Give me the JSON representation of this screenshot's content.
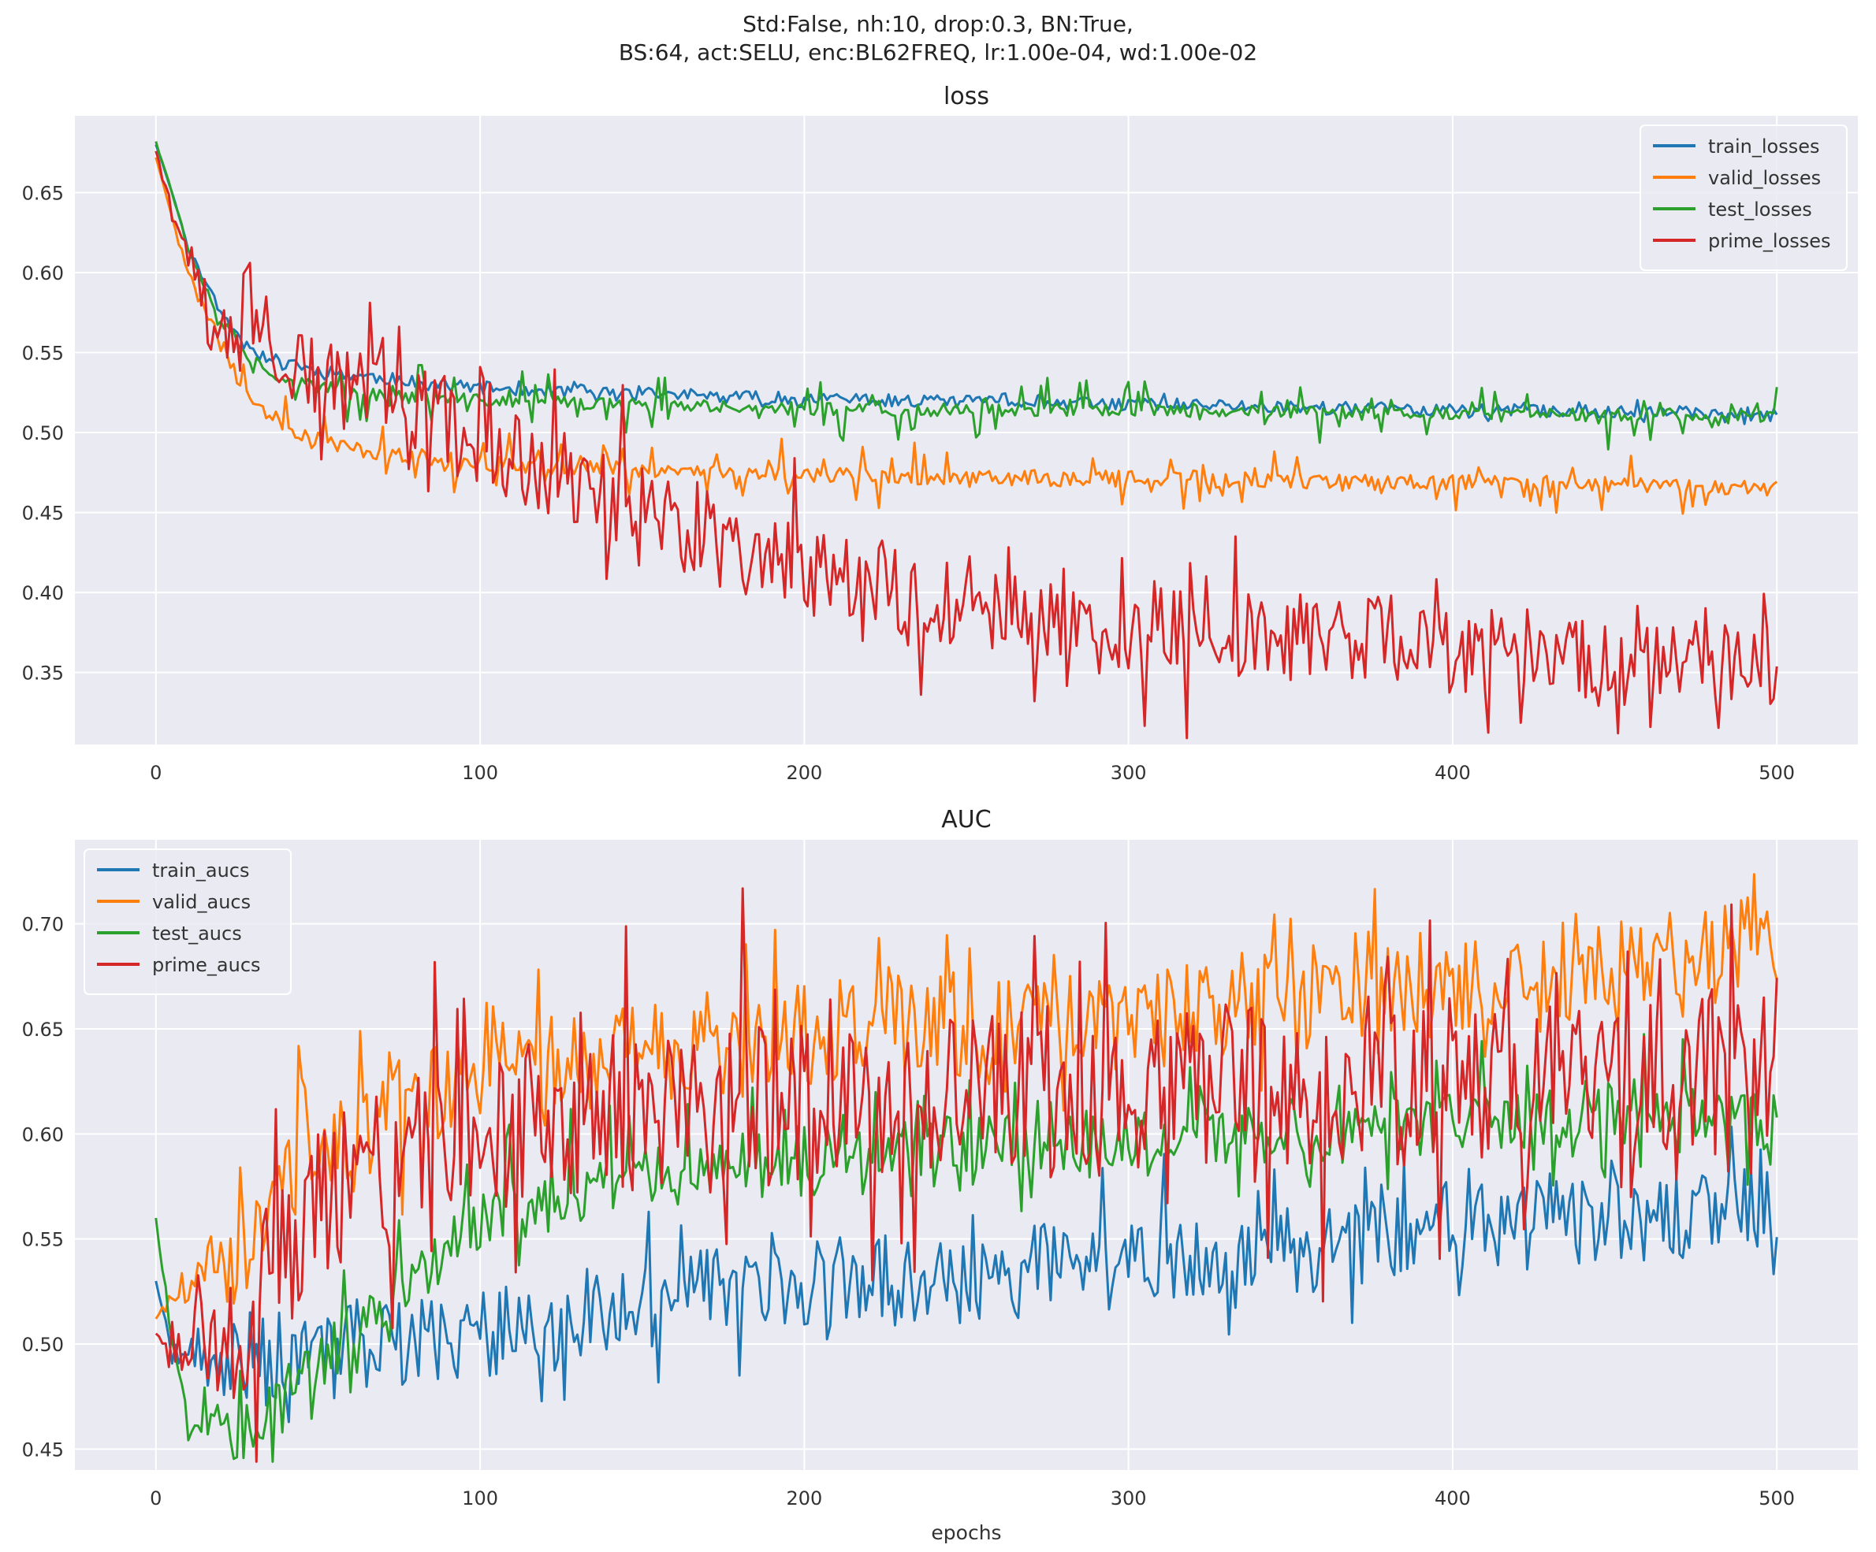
{
  "figure": {
    "title_line1": "Std:False, nh:10, drop:0.3, BN:True,",
    "title_line2": "BS:64, act:SELU, enc:BL62FREQ, lr:1.00e-04, wd:1.00e-02"
  },
  "colors": {
    "background": "#eaeaf2",
    "grid": "#ffffff",
    "blue": "#1f77b4",
    "orange": "#ff7f0e",
    "green": "#2ca02c",
    "red": "#d62728"
  },
  "chart_data": [
    {
      "type": "line",
      "title": "loss",
      "xlabel": "",
      "ylabel": "",
      "xlim": [
        -25,
        525
      ],
      "ylim": [
        0.305,
        0.698
      ],
      "xticks": [
        0,
        100,
        200,
        300,
        400,
        500
      ],
      "yticks": [
        0.35,
        0.4,
        0.45,
        0.5,
        0.55,
        0.6,
        0.65
      ],
      "grid": true,
      "legend_position": "top-right",
      "epochs": 500,
      "series": [
        {
          "name": "train_losses",
          "color": "#1f77b4",
          "anchors": [
            [
              0,
              0.68
            ],
            [
              5,
              0.65
            ],
            [
              10,
              0.615
            ],
            [
              20,
              0.575
            ],
            [
              30,
              0.552
            ],
            [
              40,
              0.542
            ],
            [
              60,
              0.536
            ],
            [
              80,
              0.532
            ],
            [
              100,
              0.528
            ],
            [
              150,
              0.524
            ],
            [
              200,
              0.521
            ],
            [
              250,
              0.519
            ],
            [
              300,
              0.518
            ],
            [
              350,
              0.516
            ],
            [
              400,
              0.514
            ],
            [
              450,
              0.513
            ],
            [
              500,
              0.512
            ]
          ],
          "noise": 0.004,
          "spikes": 0.004,
          "seed": 11
        },
        {
          "name": "valid_losses",
          "color": "#ff7f0e",
          "anchors": [
            [
              0,
              0.672
            ],
            [
              5,
              0.635
            ],
            [
              10,
              0.6
            ],
            [
              20,
              0.555
            ],
            [
              30,
              0.52
            ],
            [
              40,
              0.503
            ],
            [
              60,
              0.49
            ],
            [
              80,
              0.485
            ],
            [
              100,
              0.481
            ],
            [
              150,
              0.477
            ],
            [
              200,
              0.474
            ],
            [
              250,
              0.472
            ],
            [
              300,
              0.471
            ],
            [
              350,
              0.47
            ],
            [
              400,
              0.469
            ],
            [
              450,
              0.468
            ],
            [
              500,
              0.465
            ]
          ],
          "noise": 0.005,
          "spikes": 0.018,
          "seed": 23
        },
        {
          "name": "test_losses",
          "color": "#2ca02c",
          "anchors": [
            [
              0,
              0.682
            ],
            [
              5,
              0.65
            ],
            [
              10,
              0.615
            ],
            [
              20,
              0.57
            ],
            [
              30,
              0.545
            ],
            [
              40,
              0.533
            ],
            [
              60,
              0.525
            ],
            [
              80,
              0.522
            ],
            [
              100,
              0.52
            ],
            [
              150,
              0.517
            ],
            [
              200,
              0.515
            ],
            [
              250,
              0.514
            ],
            [
              300,
              0.514
            ],
            [
              350,
              0.513
            ],
            [
              400,
              0.512
            ],
            [
              450,
              0.511
            ],
            [
              500,
              0.51
            ]
          ],
          "noise": 0.004,
          "spikes": 0.02,
          "seed": 37
        },
        {
          "name": "prime_losses",
          "color": "#d62728",
          "anchors": [
            [
              0,
              0.676
            ],
            [
              5,
              0.64
            ],
            [
              10,
              0.61
            ],
            [
              20,
              0.575
            ],
            [
              30,
              0.552
            ],
            [
              40,
              0.542
            ],
            [
              60,
              0.53
            ],
            [
              80,
              0.515
            ],
            [
              100,
              0.495
            ],
            [
              120,
              0.478
            ],
            [
              150,
              0.455
            ],
            [
              175,
              0.43
            ],
            [
              200,
              0.415
            ],
            [
              250,
              0.395
            ],
            [
              300,
              0.38
            ],
            [
              350,
              0.372
            ],
            [
              400,
              0.367
            ],
            [
              450,
              0.362
            ],
            [
              500,
              0.36
            ]
          ],
          "noise": 0.03,
          "spikes": 0.05,
          "seed": 53
        }
      ]
    },
    {
      "type": "line",
      "title": "AUC",
      "xlabel": "epochs",
      "ylabel": "",
      "xlim": [
        -25,
        525
      ],
      "ylim": [
        0.44,
        0.74
      ],
      "xticks": [
        0,
        100,
        200,
        300,
        400,
        500
      ],
      "yticks": [
        0.45,
        0.5,
        0.55,
        0.6,
        0.65,
        0.7
      ],
      "grid": true,
      "legend_position": "top-left",
      "epochs": 500,
      "series": [
        {
          "name": "train_aucs",
          "color": "#1f77b4",
          "anchors": [
            [
              0,
              0.53
            ],
            [
              5,
              0.495
            ],
            [
              20,
              0.49
            ],
            [
              50,
              0.495
            ],
            [
              100,
              0.505
            ],
            [
              150,
              0.52
            ],
            [
              200,
              0.528
            ],
            [
              250,
              0.532
            ],
            [
              300,
              0.538
            ],
            [
              350,
              0.545
            ],
            [
              400,
              0.555
            ],
            [
              450,
              0.56
            ],
            [
              500,
              0.565
            ]
          ],
          "noise": 0.022,
          "spikes": 0.03,
          "seed": 71
        },
        {
          "name": "valid_aucs",
          "color": "#ff7f0e",
          "anchors": [
            [
              0,
              0.512
            ],
            [
              10,
              0.53
            ],
            [
              30,
              0.548
            ],
            [
              40,
              0.58
            ],
            [
              60,
              0.6
            ],
            [
              100,
              0.63
            ],
            [
              150,
              0.64
            ],
            [
              200,
              0.648
            ],
            [
              250,
              0.652
            ],
            [
              300,
              0.655
            ],
            [
              350,
              0.665
            ],
            [
              400,
              0.672
            ],
            [
              450,
              0.68
            ],
            [
              500,
              0.69
            ]
          ],
          "noise": 0.025,
          "spikes": 0.035,
          "seed": 89
        },
        {
          "name": "test_aucs",
          "color": "#2ca02c",
          "anchors": [
            [
              0,
              0.56
            ],
            [
              5,
              0.5
            ],
            [
              10,
              0.47
            ],
            [
              20,
              0.455
            ],
            [
              30,
              0.46
            ],
            [
              50,
              0.49
            ],
            [
              80,
              0.53
            ],
            [
              100,
              0.56
            ],
            [
              150,
              0.58
            ],
            [
              200,
              0.59
            ],
            [
              250,
              0.595
            ],
            [
              300,
              0.598
            ],
            [
              350,
              0.6
            ],
            [
              400,
              0.605
            ],
            [
              450,
              0.608
            ],
            [
              500,
              0.605
            ]
          ],
          "noise": 0.014,
          "spikes": 0.03,
          "seed": 97
        },
        {
          "name": "prime_aucs",
          "color": "#d62728",
          "anchors": [
            [
              0,
              0.505
            ],
            [
              10,
              0.5
            ],
            [
              30,
              0.51
            ],
            [
              40,
              0.56
            ],
            [
              60,
              0.58
            ],
            [
              100,
              0.6
            ],
            [
              150,
              0.61
            ],
            [
              200,
              0.615
            ],
            [
              250,
              0.618
            ],
            [
              300,
              0.62
            ],
            [
              350,
              0.622
            ],
            [
              400,
              0.625
            ],
            [
              450,
              0.628
            ],
            [
              500,
              0.63
            ]
          ],
          "noise": 0.04,
          "spikes": 0.07,
          "seed": 113
        }
      ]
    }
  ]
}
